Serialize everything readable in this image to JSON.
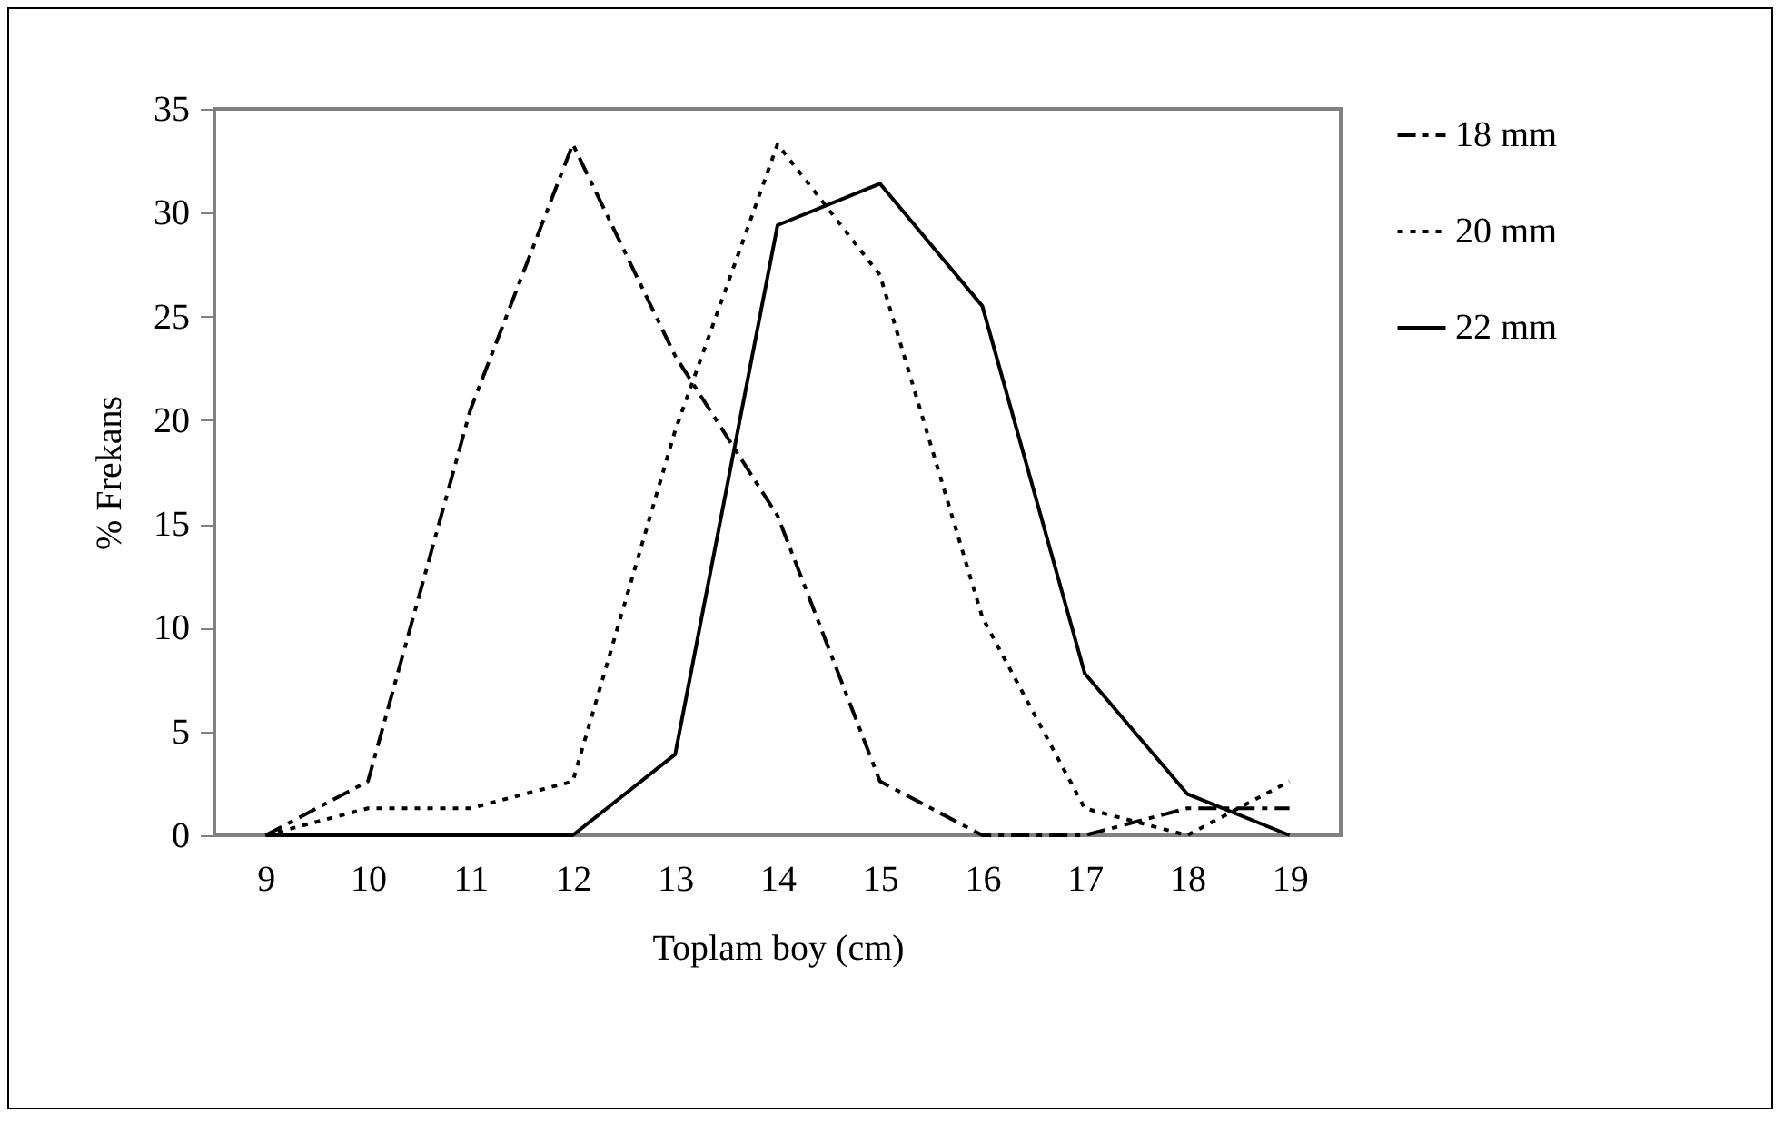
{
  "chart_data": {
    "type": "line",
    "xlabel": "Toplam boy (cm)",
    "ylabel": "% Frekans",
    "categories": [
      "9",
      "10",
      "11",
      "12",
      "13",
      "14",
      "15",
      "16",
      "17",
      "18",
      "19"
    ],
    "ylim": [
      0,
      35
    ],
    "yticks": [
      0,
      5,
      10,
      15,
      20,
      25,
      30,
      35
    ],
    "grid": false,
    "legend": "right",
    "marker": "none",
    "series": [
      {
        "name": "18 mm",
        "color": "#000000",
        "line_style": "dashdot",
        "values": [
          0,
          2.6,
          20.5,
          33.3,
          23.1,
          15.4,
          2.6,
          0,
          0,
          1.3,
          1.3
        ]
      },
      {
        "name": "20 mm",
        "color": "#000000",
        "line_style": "dotted",
        "values": [
          0,
          1.3,
          1.3,
          2.6,
          19.5,
          33.3,
          27,
          10.5,
          1.3,
          0,
          2.6
        ]
      },
      {
        "name": "22 mm",
        "color": "#000000",
        "line_style": "solid",
        "values": [
          0,
          0,
          0,
          0,
          3.9,
          29.4,
          31.4,
          25.5,
          7.8,
          2,
          0
        ]
      }
    ]
  }
}
